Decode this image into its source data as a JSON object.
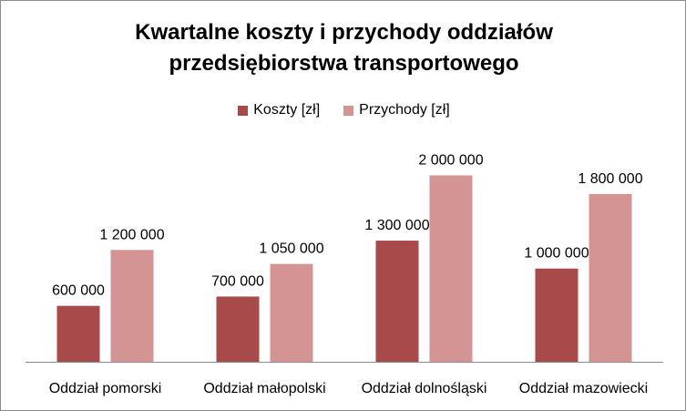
{
  "chart_data": {
    "type": "bar",
    "title": [
      "Kwartalne koszty i przychody oddziałów",
      "przedsiębiorstwa transportowego"
    ],
    "categories": [
      "Oddział pomorski",
      "Oddział małopolski",
      "Oddział dolnośląski",
      "Oddział mazowiecki"
    ],
    "series": [
      {
        "name": "Koszty [zł]",
        "values": [
          600000,
          700000,
          1300000,
          1000000
        ],
        "labels": [
          "600 000",
          "700 000",
          "1 300 000",
          "1 000 000"
        ],
        "color": "#a84a4a"
      },
      {
        "name": "Przychody [zł]",
        "values": [
          1200000,
          1050000,
          2000000,
          1800000
        ],
        "labels": [
          "1 200 000",
          "1 050 000",
          "2 000 000",
          "1 800 000"
        ],
        "color": "#d49494"
      }
    ],
    "xlabel": "",
    "ylabel": "",
    "ylim": [
      0,
      2200000
    ],
    "grid": false,
    "legend_position": "top"
  }
}
